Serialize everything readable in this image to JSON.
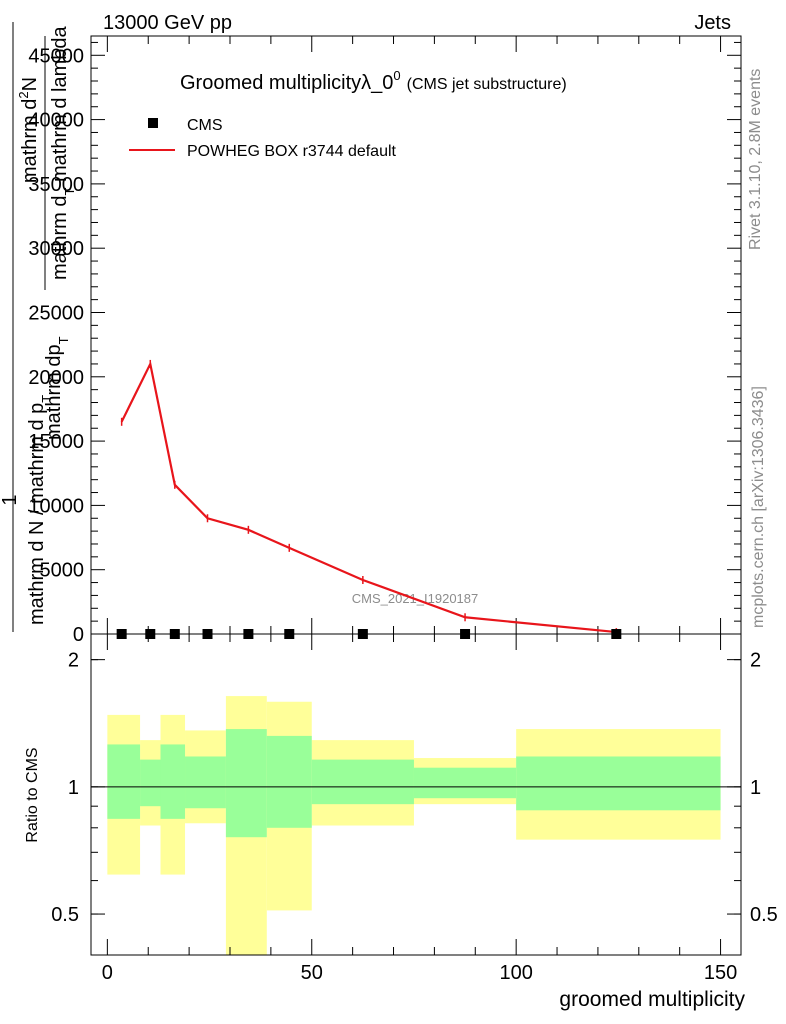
{
  "header": {
    "energy": "13000 GeV pp",
    "process": "Jets"
  },
  "side": {
    "rivet": "Rivet 3.1.10,  2.8M events",
    "mcplots": "mcplots.cern.ch [arXiv:1306.3436]"
  },
  "colors": {
    "mc_line": "#e8151b",
    "band_inner": "#99ff99",
    "band_outer": "#ffff99",
    "data_marker": "#000000"
  },
  "chart_data": [
    {
      "type": "line",
      "title": "Groomed multiplicityλ_0",
      "title_sup": "0",
      "subtitle": "(CMS jet substructure)",
      "watermark": "CMS_2021_I1920187",
      "xlabel": "groomed multiplicity",
      "ylabel": {
        "num": "1",
        "den": "mathrm d N / mathrm d p",
        "frac_num": "mathrm d",
        "frac_num_sup": "2",
        "frac_num_N": "N",
        "frac_den_a": "mathrm dp",
        "frac_den_a_sub": "T",
        "frac_den_b": "mathrm d",
        "frac_den_b_tail": " mathrm d lambda",
        "frac_den_sub": "T"
      },
      "xlim": [
        -4,
        155
      ],
      "ylim": [
        0,
        46500
      ],
      "xticks": [
        0,
        50,
        100,
        150
      ],
      "yticks": [
        0,
        5000,
        10000,
        15000,
        20000,
        25000,
        30000,
        35000,
        40000,
        45000
      ],
      "ytick_labels": [
        "0",
        "5000",
        "10000",
        "15000",
        "20000",
        "25000",
        "30000",
        "35000",
        "40000",
        "45000"
      ],
      "legend": [
        {
          "label": "CMS",
          "kind": "marker"
        },
        {
          "label": "POWHEG BOX r3744 default",
          "kind": "line"
        }
      ],
      "series": [
        {
          "name": "CMS",
          "x": [
            3.5,
            10.5,
            16.5,
            24.5,
            34.5,
            44.5,
            62.5,
            87.5,
            124.5
          ],
          "y": [
            0,
            0,
            0,
            0,
            0,
            0,
            0,
            0,
            0
          ]
        },
        {
          "name": "POWHEG BOX r3744 default",
          "x": [
            3.5,
            10.5,
            16.5,
            24.5,
            34.5,
            44.5,
            62.5,
            87.5,
            124.5
          ],
          "y": [
            16500,
            21000,
            11600,
            9000,
            8100,
            6700,
            4200,
            1300,
            150
          ]
        }
      ]
    },
    {
      "type": "area",
      "ylabel": "Ratio to CMS",
      "xlabel": "groomed multiplicity",
      "xlim": [
        -4,
        155
      ],
      "ylim": [
        0.4,
        2.3
      ],
      "scale": "log",
      "xticks": [
        0,
        50,
        100,
        150
      ],
      "yticks": [
        0.5,
        1,
        2
      ],
      "ytick_labels": [
        "0.5",
        "1",
        "2"
      ],
      "reference": 1,
      "bins": [
        {
          "x0": 0,
          "x1": 8,
          "inner": [
            0.84,
            1.26
          ],
          "outer": [
            0.62,
            1.48
          ]
        },
        {
          "x0": 8,
          "x1": 13,
          "inner": [
            0.9,
            1.16
          ],
          "outer": [
            0.81,
            1.29
          ]
        },
        {
          "x0": 13,
          "x1": 19,
          "inner": [
            0.84,
            1.26
          ],
          "outer": [
            0.62,
            1.48
          ]
        },
        {
          "x0": 19,
          "x1": 29,
          "inner": [
            0.89,
            1.18
          ],
          "outer": [
            0.82,
            1.36
          ]
        },
        {
          "x0": 29,
          "x1": 39,
          "inner": [
            0.76,
            1.37
          ],
          "outer": [
            0.39,
            1.64
          ]
        },
        {
          "x0": 39,
          "x1": 50,
          "inner": [
            0.8,
            1.32
          ],
          "outer": [
            0.51,
            1.59
          ]
        },
        {
          "x0": 50,
          "x1": 75,
          "inner": [
            0.91,
            1.16
          ],
          "outer": [
            0.81,
            1.29
          ]
        },
        {
          "x0": 75,
          "x1": 100,
          "inner": [
            0.94,
            1.11
          ],
          "outer": [
            0.91,
            1.17
          ]
        },
        {
          "x0": 100,
          "x1": 150,
          "inner": [
            0.88,
            1.18
          ],
          "outer": [
            0.75,
            1.37
          ]
        }
      ]
    }
  ]
}
